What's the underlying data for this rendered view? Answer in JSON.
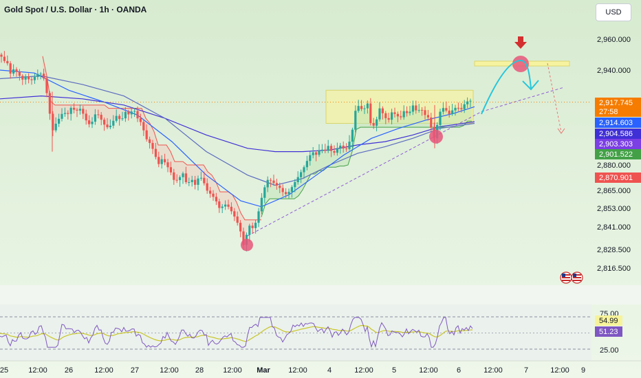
{
  "header": {
    "symbol_title": "Gold Spot / U.S. Dollar · 1h · OANDA",
    "currency_button": "USD"
  },
  "chart_data": [
    {
      "type": "candlestick",
      "title": "Gold Spot / U.S. Dollar · 1h · OANDA",
      "x_ticks": [
        "25",
        "12:00",
        "26",
        "12:00",
        "27",
        "12:00",
        "28",
        "12:00",
        "Mar",
        "12:00",
        "4",
        "12:00",
        "5",
        "12:00",
        "6",
        "12:00",
        "7",
        "12:00",
        "9"
      ],
      "y_ticks": [
        2960.0,
        2940.0,
        2918.0,
        2880.0,
        2865.0,
        2853.0,
        2841.0,
        2828.5,
        2816.5
      ],
      "y_tick_labels": [
        "2,960.000",
        "2,940.000",
        "2,918.000",
        "2,880.000",
        "2,865.000",
        "2,853.000",
        "2,841.000",
        "2,828.500",
        "2,816.500"
      ],
      "price_labels": [
        {
          "value": "2,917.745",
          "color": "#f57c00"
        },
        {
          "value": "27:58",
          "color": "#f57c00"
        },
        {
          "value": "2,914.603",
          "color": "#2962ff"
        },
        {
          "value": "2,904.586",
          "color": "#3f2fd6"
        },
        {
          "value": "2,903.303",
          "color": "#7b3fe4"
        },
        {
          "value": "2,901.522",
          "color": "#43a047"
        },
        {
          "value": "2,870.901",
          "color": "#ef5350"
        }
      ],
      "close_path": [
        [
          0,
          2950
        ],
        [
          6,
          2946
        ],
        [
          12,
          2944
        ],
        [
          16,
          2936
        ],
        [
          20,
          2941
        ],
        [
          26,
          2938
        ],
        [
          32,
          2933
        ],
        [
          38,
          2936
        ],
        [
          44,
          2932
        ],
        [
          50,
          2935
        ],
        [
          56,
          2938
        ],
        [
          62,
          2937
        ],
        [
          66,
          2930
        ],
        [
          70,
          2918
        ],
        [
          76,
          2900
        ],
        [
          80,
          2904
        ],
        [
          86,
          2908
        ],
        [
          92,
          2912
        ],
        [
          98,
          2910
        ],
        [
          104,
          2915
        ],
        [
          110,
          2912
        ],
        [
          116,
          2914
        ],
        [
          122,
          2910
        ],
        [
          128,
          2904
        ],
        [
          134,
          2906
        ],
        [
          140,
          2912
        ],
        [
          146,
          2908
        ],
        [
          152,
          2904
        ],
        [
          158,
          2902
        ],
        [
          164,
          2906
        ],
        [
          170,
          2910
        ],
        [
          176,
          2906
        ],
        [
          182,
          2912
        ],
        [
          188,
          2910
        ],
        [
          194,
          2914
        ],
        [
          200,
          2908
        ],
        [
          206,
          2905
        ],
        [
          212,
          2896
        ],
        [
          218,
          2893
        ],
        [
          224,
          2888
        ],
        [
          230,
          2880
        ],
        [
          236,
          2884
        ],
        [
          242,
          2880
        ],
        [
          248,
          2876
        ],
        [
          254,
          2870
        ],
        [
          260,
          2872
        ],
        [
          266,
          2875
        ],
        [
          272,
          2868
        ],
        [
          278,
          2872
        ],
        [
          284,
          2868
        ],
        [
          290,
          2874
        ],
        [
          296,
          2870
        ],
        [
          302,
          2864
        ],
        [
          308,
          2862
        ],
        [
          314,
          2858
        ],
        [
          320,
          2852
        ],
        [
          326,
          2856
        ],
        [
          332,
          2854
        ],
        [
          338,
          2850
        ],
        [
          344,
          2845
        ],
        [
          350,
          2838
        ],
        [
          354,
          2831
        ],
        [
          358,
          2836
        ],
        [
          362,
          2842
        ],
        [
          368,
          2840
        ],
        [
          374,
          2846
        ],
        [
          378,
          2856
        ],
        [
          384,
          2866
        ],
        [
          390,
          2872
        ],
        [
          396,
          2870
        ],
        [
          402,
          2868
        ],
        [
          408,
          2866
        ],
        [
          414,
          2862
        ],
        [
          420,
          2864
        ],
        [
          426,
          2868
        ],
        [
          432,
          2872
        ],
        [
          438,
          2876
        ],
        [
          444,
          2880
        ],
        [
          448,
          2884
        ],
        [
          454,
          2888
        ],
        [
          460,
          2886
        ],
        [
          466,
          2890
        ],
        [
          472,
          2888
        ],
        [
          478,
          2892
        ],
        [
          484,
          2886
        ],
        [
          490,
          2890
        ],
        [
          496,
          2892
        ],
        [
          502,
          2888
        ],
        [
          508,
          2894
        ],
        [
          512,
          2900
        ],
        [
          516,
          2912
        ],
        [
          522,
          2916
        ],
        [
          528,
          2912
        ],
        [
          534,
          2918
        ],
        [
          540,
          2902
        ],
        [
          546,
          2905
        ],
        [
          552,
          2914
        ],
        [
          558,
          2910
        ],
        [
          564,
          2906
        ],
        [
          570,
          2912
        ],
        [
          576,
          2910
        ],
        [
          582,
          2908
        ],
        [
          588,
          2913
        ],
        [
          594,
          2910
        ],
        [
          600,
          2916
        ],
        [
          606,
          2912
        ],
        [
          612,
          2914
        ],
        [
          618,
          2910
        ],
        [
          624,
          2908
        ],
        [
          628,
          2900
        ],
        [
          632,
          2895
        ],
        [
          636,
          2905
        ],
        [
          640,
          2912
        ],
        [
          646,
          2915
        ],
        [
          652,
          2910
        ],
        [
          658,
          2913
        ],
        [
          664,
          2915
        ],
        [
          670,
          2913
        ],
        [
          676,
          2917
        ],
        [
          682,
          2919
        ],
        [
          688,
          2918
        ]
      ],
      "ma_slow": [
        [
          0,
          2920
        ],
        [
          60,
          2922
        ],
        [
          120,
          2920
        ],
        [
          180,
          2916
        ],
        [
          240,
          2908
        ],
        [
          300,
          2898
        ],
        [
          360,
          2890
        ],
        [
          400,
          2888
        ],
        [
          440,
          2888
        ],
        [
          480,
          2889
        ],
        [
          520,
          2892
        ],
        [
          560,
          2894
        ],
        [
          600,
          2898
        ],
        [
          640,
          2903
        ],
        [
          690,
          2906
        ]
      ],
      "ma_mid": [
        [
          0,
          2934
        ],
        [
          60,
          2936
        ],
        [
          120,
          2930
        ],
        [
          180,
          2922
        ],
        [
          240,
          2908
        ],
        [
          300,
          2888
        ],
        [
          360,
          2874
        ],
        [
          400,
          2868
        ],
        [
          440,
          2872
        ],
        [
          480,
          2880
        ],
        [
          520,
          2887
        ],
        [
          560,
          2891
        ],
        [
          600,
          2896
        ],
        [
          640,
          2902
        ],
        [
          690,
          2905
        ]
      ],
      "ma_fast": [
        [
          0,
          2940
        ],
        [
          50,
          2938
        ],
        [
          100,
          2926
        ],
        [
          150,
          2918
        ],
        [
          200,
          2910
        ],
        [
          250,
          2894
        ],
        [
          300,
          2874
        ],
        [
          350,
          2858
        ],
        [
          380,
          2854
        ],
        [
          420,
          2862
        ],
        [
          460,
          2874
        ],
        [
          500,
          2886
        ],
        [
          540,
          2896
        ],
        [
          580,
          2902
        ],
        [
          620,
          2907
        ],
        [
          660,
          2911
        ],
        [
          690,
          2915
        ]
      ],
      "resistance_band": {
        "x_start": "Mar 4",
        "x_end": "Mar 6",
        "y_low": 2905,
        "y_high": 2926
      },
      "target_zone": {
        "value": 2944
      },
      "rsi": {
        "levels": [
          75.0,
          25.0
        ],
        "tick_labels": [
          "75.00",
          "25.00"
        ],
        "rsi_value": "54.99",
        "signal_value": "51.23",
        "rsi_color": "#7e57c2",
        "signal_color": "#c8c628"
      },
      "colors": {
        "up": "#26a69a",
        "down": "#ef5350",
        "background": "#e4f1de",
        "projection": "#26c6da"
      }
    }
  ]
}
